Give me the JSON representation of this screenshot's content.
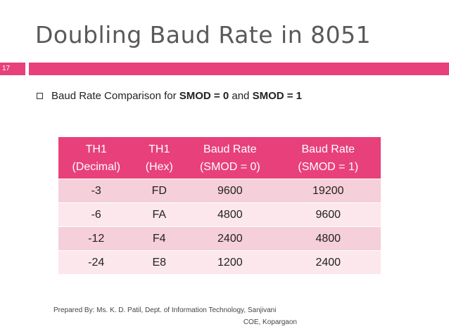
{
  "slide": {
    "title": "Doubling Baud Rate in 8051",
    "number": "17"
  },
  "bullet": {
    "prefix": "Baud Rate Comparison for ",
    "smod0": "SMOD = 0",
    "middle": " and ",
    "smod1": "SMOD = 1"
  },
  "table": {
    "headers": [
      {
        "line1": "TH1",
        "line2": "(Decimal)"
      },
      {
        "line1": "TH1",
        "line2": "(Hex)"
      },
      {
        "line1": "Baud Rate",
        "line2": "(SMOD = 0)"
      },
      {
        "line1": "Baud Rate",
        "line2": "(SMOD = 1)"
      }
    ],
    "rows": [
      [
        "-3",
        "FD",
        "9600",
        "19200"
      ],
      [
        "-6",
        "FA",
        "4800",
        "9600"
      ],
      [
        "-12",
        "F4",
        "2400",
        "4800"
      ],
      [
        "-24",
        "E8",
        "1200",
        "2400"
      ]
    ]
  },
  "footer": {
    "line1": "Prepared By: Ms. K. D. Patil, Dept. of Information Technology, Sanjivani",
    "line2": "COE, Kopargaon"
  },
  "colors": {
    "accent": "#e8407a",
    "row_odd": "#f5cfd9",
    "row_even": "#fbe7ec",
    "title_text": "#595959"
  }
}
